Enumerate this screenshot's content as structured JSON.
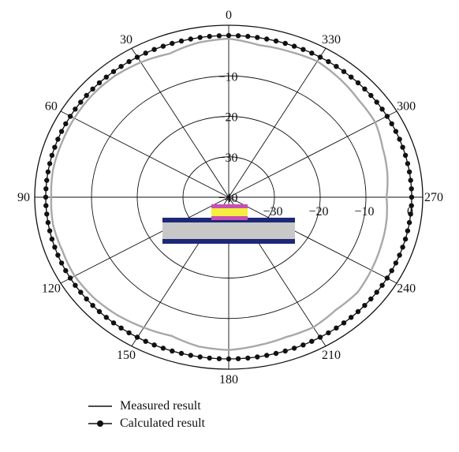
{
  "chart_data": {
    "type": "polar-line",
    "units": "dB",
    "angle_ticks": [
      "0",
      "30",
      "60",
      "90",
      "120",
      "150",
      "180",
      "210",
      "240",
      "270",
      "300",
      "330"
    ],
    "angle_values": [
      0,
      30,
      60,
      90,
      120,
      150,
      180,
      210,
      240,
      270,
      300,
      330
    ],
    "radial_ticks": [
      "-40",
      "-30",
      "-20",
      "-10",
      "0"
    ],
    "radial_values": [
      -40,
      -30,
      -20,
      -10,
      0
    ],
    "right_radial_ticks": [
      "-30",
      "-20",
      "-10",
      "0"
    ],
    "right_radial_values": [
      -30,
      -20,
      -10,
      0
    ],
    "rlim": [
      -40,
      0
    ],
    "grid": true,
    "legend_placement": "bottom",
    "series": [
      {
        "name": "Measured result",
        "style": "solid-line",
        "color": "#a8a8a8",
        "theta": [
          0,
          10,
          20,
          30,
          40,
          50,
          60,
          70,
          80,
          90,
          100,
          110,
          120,
          130,
          140,
          150,
          160,
          170,
          180,
          190,
          200,
          210,
          220,
          230,
          240,
          250,
          260,
          270,
          280,
          290,
          300,
          310,
          320,
          330,
          340,
          350
        ],
        "r": [
          -0.8,
          -1.2,
          -2.2,
          -1.5,
          -1.0,
          -0.9,
          -1.0,
          -1.1,
          -1.0,
          -1.2,
          -1.0,
          -1.3,
          -1.1,
          -1.4,
          -2.0,
          -2.8,
          -3.5,
          -2.5,
          -2.2,
          -2.8,
          -3.2,
          -2.9,
          -3.6,
          -3.3,
          -4.0,
          -4.6,
          -5.0,
          -5.5,
          -4.8,
          -4.2,
          -3.0,
          -2.8,
          -2.0,
          -1.2,
          -1.6,
          -1.8
        ]
      },
      {
        "name": "Calculated result",
        "style": "line-with-markers",
        "color": "#111111",
        "theta": [
          0,
          10,
          20,
          30,
          40,
          50,
          60,
          70,
          80,
          90,
          100,
          110,
          120,
          130,
          140,
          150,
          160,
          170,
          180,
          190,
          200,
          210,
          220,
          230,
          240,
          250,
          260,
          270,
          280,
          290,
          300,
          310,
          320,
          330,
          340,
          350
        ],
        "r": [
          0,
          0,
          0,
          0,
          0,
          0,
          0,
          0,
          0,
          0,
          0,
          0,
          0,
          0,
          0,
          0,
          0,
          0,
          0,
          0,
          0,
          0,
          0,
          0,
          0,
          0,
          0,
          0,
          0,
          0,
          0,
          0,
          0,
          0,
          0,
          0
        ]
      }
    ],
    "inset": {
      "colors": {
        "patch_top": "#c850b4",
        "patch_core": "#f5ee3c",
        "patch_base": "#c850b4",
        "ground_plane": "#1e2878",
        "substrate": "#c8c8c8"
      }
    }
  },
  "legend": {
    "items": [
      {
        "label": "Measured result",
        "marker": "line"
      },
      {
        "label": "Calculated result",
        "marker": "line-dot"
      }
    ]
  }
}
